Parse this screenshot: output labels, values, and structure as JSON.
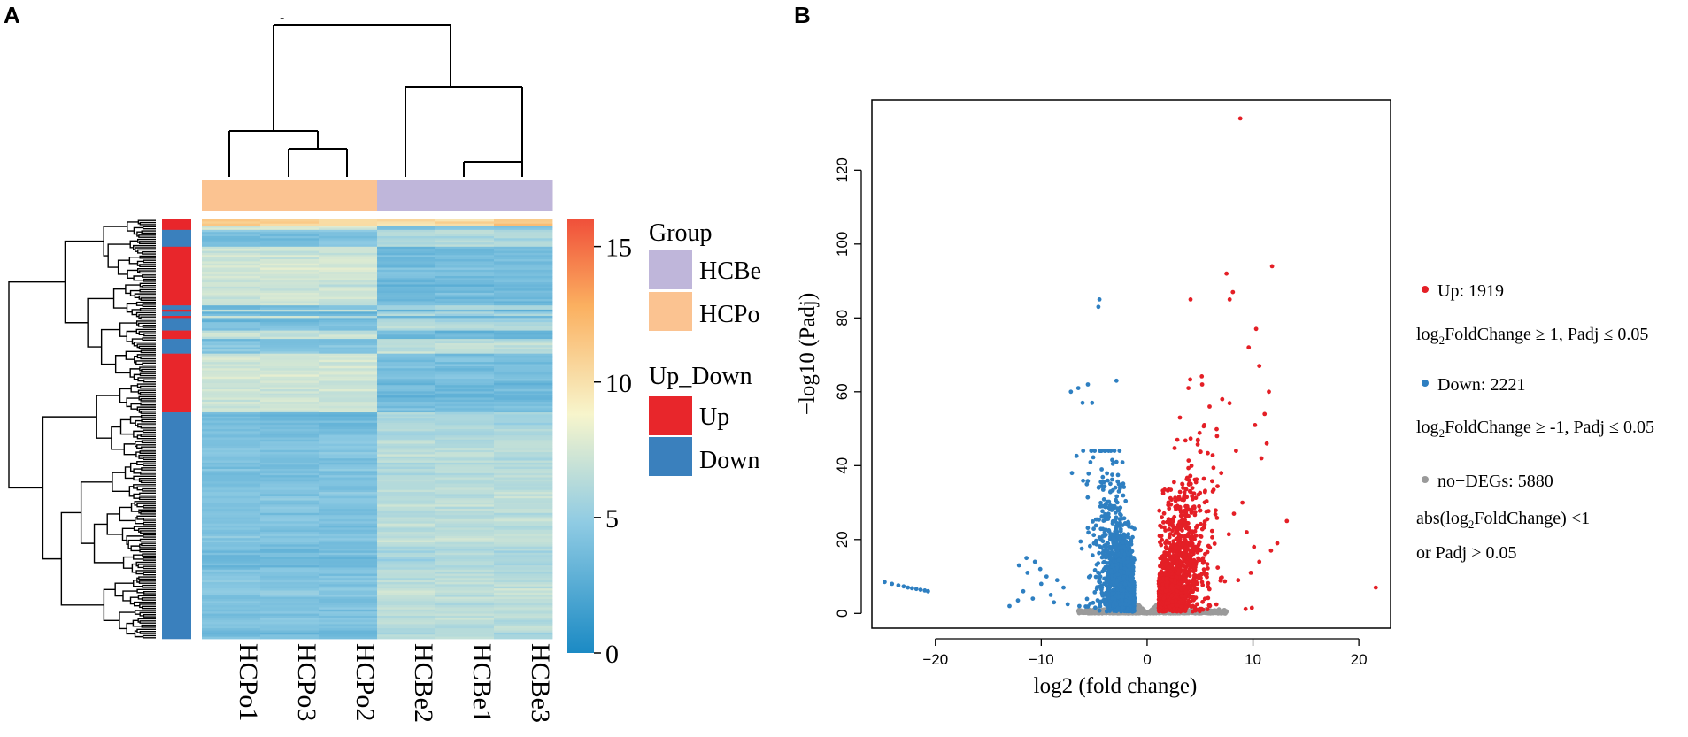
{
  "panel_a": {
    "label": "A",
    "top_mark": "-",
    "samples": [
      "HCPo1",
      "HCPo3",
      "HCPo2",
      "HCBe2",
      "HCBe1",
      "HCBe3"
    ],
    "sample_groups": [
      "HCPo",
      "HCPo",
      "HCPo",
      "HCBe",
      "HCBe",
      "HCBe"
    ],
    "colorbar_ticks": [
      "0",
      "5",
      "10",
      "15"
    ],
    "legend": {
      "group_title": "Group",
      "group_items": [
        {
          "label": "HCBe",
          "color": "#bfb6da"
        },
        {
          "label": "HCPo",
          "color": "#fbc391"
        }
      ],
      "updown_title": "Up_Down",
      "updown_items": [
        {
          "label": "Up",
          "color": "#e8262b"
        },
        {
          "label": "Down",
          "color": "#3a80bd"
        }
      ]
    },
    "row_annotation": [
      {
        "type": "Up",
        "span": 5
      },
      {
        "type": "Down",
        "span": 8
      },
      {
        "type": "Up",
        "span": 28
      },
      {
        "type": "Down",
        "span": 2
      },
      {
        "type": "Up",
        "span": 1
      },
      {
        "type": "Down",
        "span": 2
      },
      {
        "type": "Up",
        "span": 1
      },
      {
        "type": "Down",
        "span": 6
      },
      {
        "type": "Up",
        "span": 4
      },
      {
        "type": "Down",
        "span": 7
      },
      {
        "type": "Up",
        "span": 28
      },
      {
        "type": "Down",
        "span": 108
      }
    ],
    "colors": {
      "up": "#e8262b",
      "down": "#3a80bd",
      "group_hcbe": "#bfb6da",
      "group_hcpo": "#fbc391",
      "scale": [
        "#1b8ac4",
        "#8fcbe3",
        "#f7f5cc",
        "#fbb060",
        "#f0503a"
      ]
    }
  },
  "chart_data": {
    "type": "scatter",
    "title": "",
    "panel_label": "B",
    "xlabel": "log2 (fold change)",
    "ylabel": "−log10 (Padj)",
    "xlim": [
      -26,
      23
    ],
    "ylim": [
      -4,
      139
    ],
    "xticks": [
      -20,
      -10,
      0,
      10,
      20
    ],
    "yticks": [
      0,
      20,
      40,
      60,
      80,
      100,
      120
    ],
    "xtick_labels": [
      "−20",
      "−10",
      "0",
      "10",
      "20"
    ],
    "ytick_labels": [
      "0",
      "20",
      "40",
      "60",
      "80",
      "100",
      "120"
    ],
    "series": [
      {
        "name": "Up",
        "count_label": "Up: 1919",
        "criterion": "log2FoldChange ≥ 1, Padj ≤ 0.05",
        "color": "#e41f26",
        "highlight_points": [
          [
            8.8,
            134
          ],
          [
            7.5,
            92
          ],
          [
            11.8,
            94
          ],
          [
            8.1,
            87
          ],
          [
            7.8,
            85
          ],
          [
            4.1,
            85
          ],
          [
            10.6,
            67
          ],
          [
            11.5,
            60
          ],
          [
            9.6,
            72
          ],
          [
            10.3,
            77
          ],
          [
            5.2,
            62
          ],
          [
            3.9,
            61
          ],
          [
            7.1,
            58
          ],
          [
            5.9,
            56
          ],
          [
            11.1,
            54
          ],
          [
            10.2,
            51
          ],
          [
            3.1,
            53
          ],
          [
            11.3,
            46
          ],
          [
            10.8,
            42
          ],
          [
            13.2,
            25
          ],
          [
            12.3,
            19
          ],
          [
            11.7,
            17
          ],
          [
            10.6,
            14
          ],
          [
            9.8,
            11
          ],
          [
            8.6,
            9
          ],
          [
            21.6,
            7
          ],
          [
            9.9,
            1.5
          ],
          [
            9.3,
            1.2
          ],
          [
            6.2,
            33
          ],
          [
            7.0,
            38
          ],
          [
            8.4,
            44
          ],
          [
            6.6,
            48
          ],
          [
            5.4,
            51
          ],
          [
            4.8,
            47
          ],
          [
            9.0,
            30
          ],
          [
            8.2,
            27
          ],
          [
            9.4,
            22
          ],
          [
            10.1,
            18
          ]
        ],
        "cloud": {
          "x_range": [
            1,
            9
          ],
          "n_points": 1400
        }
      },
      {
        "name": "Down",
        "count_label": "Down: 2221",
        "criterion": "log2FoldChange ≥ -1, Padj ≤ 0.05",
        "color": "#2e7fc1",
        "highlight_points": [
          [
            -4.5,
            85
          ],
          [
            -4.6,
            83
          ],
          [
            -6.5,
            61
          ],
          [
            -5.6,
            62
          ],
          [
            -2.9,
            63
          ],
          [
            -7.2,
            60
          ],
          [
            -6.1,
            57
          ],
          [
            -5.2,
            57
          ],
          [
            -2.6,
            44
          ],
          [
            -2.9,
            41
          ],
          [
            -7.1,
            38
          ],
          [
            -24.8,
            8.5
          ],
          [
            -24.1,
            8.0
          ],
          [
            -23.5,
            7.6
          ],
          [
            -23.0,
            7.3
          ],
          [
            -22.6,
            7.0
          ],
          [
            -22.2,
            6.8
          ],
          [
            -21.8,
            6.6
          ],
          [
            -21.4,
            6.4
          ],
          [
            -21.0,
            6.2
          ],
          [
            -20.7,
            6.0
          ],
          [
            -11.4,
            15
          ],
          [
            -10.6,
            14
          ],
          [
            -12.1,
            13
          ],
          [
            -10.1,
            12
          ],
          [
            -11.3,
            11
          ],
          [
            -9.5,
            10
          ],
          [
            -8.5,
            9
          ],
          [
            -10.0,
            8
          ],
          [
            -11.7,
            6
          ],
          [
            -10.8,
            4
          ],
          [
            -12.2,
            3.5
          ],
          [
            -9.1,
            5
          ],
          [
            -7.9,
            7
          ],
          [
            -8.8,
            3
          ],
          [
            -7.5,
            2.5
          ],
          [
            -6.4,
            2
          ],
          [
            -13.0,
            2
          ]
        ],
        "cloud": {
          "x_range": [
            -7,
            -1
          ],
          "n_points": 1400
        }
      },
      {
        "name": "no-DEGs",
        "count_label": "no−DEGs: 5880",
        "criterion": "abs(log2FoldChange) <1",
        "criterion_2": "or Padj > 0.05",
        "color": "#9a9a9a",
        "cloud": {
          "x_range": [
            -6.5,
            7.5
          ],
          "n_points": 900
        }
      }
    ],
    "legend_position": "right",
    "labels": {
      "up_count": "Up: 1919",
      "up_crit_pre": "log",
      "up_crit_sub": "2",
      "up_crit_post": "FoldChange ≥ 1, Padj ≤ 0.05",
      "down_count": "Down: 2221",
      "down_crit_pre": "log",
      "down_crit_sub": "2",
      "down_crit_post": "FoldChange ≥ -1, Padj ≤ 0.05",
      "nodeg_count": "no−DEGs: 5880",
      "nodeg_crit_pre": "abs(log",
      "nodeg_crit_sub": "2",
      "nodeg_crit_post": "FoldChange) <1",
      "nodeg_crit2": "or Padj > 0.05"
    }
  }
}
